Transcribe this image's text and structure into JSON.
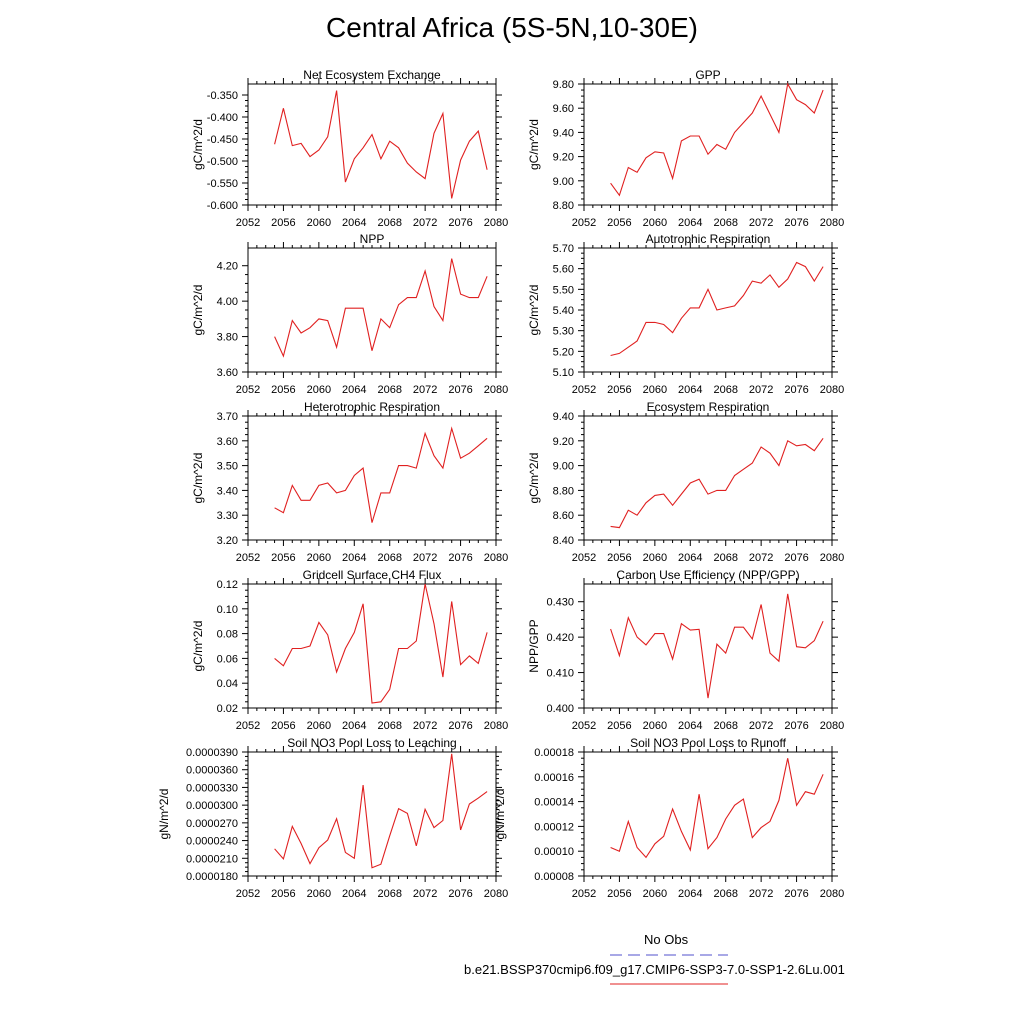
{
  "page": {
    "title": "Central Africa (5S-5N,10-30E)"
  },
  "legend": {
    "entries": [
      {
        "label": "No Obs",
        "color": "#5050cc",
        "dash": true
      },
      {
        "label": "b.e21.BSSP370cmip6.f09_g17.CMIP6-SSP3-7.0-SSP1-2.6Lu.001",
        "color": "#e02020",
        "dash": false
      }
    ]
  },
  "colors": {
    "series": "#e02020"
  },
  "chart_data": [
    {
      "type": "line",
      "title": "Net Ecosystem Exchange",
      "ylabel": "gC/m^2/d",
      "xlim": [
        2052,
        2080
      ],
      "ylim": [
        -0.6,
        -0.325
      ],
      "x_ticks": [
        2052,
        2056,
        2060,
        2064,
        2068,
        2072,
        2076,
        2080
      ],
      "y_ticks": [
        -0.6,
        -0.55,
        -0.5,
        -0.45,
        -0.4,
        -0.35
      ],
      "y_tick_labels": [
        "-0.600",
        "-0.550",
        "-0.500",
        "-0.450",
        "-0.400",
        "-0.350"
      ],
      "x": [
        2055,
        2056,
        2057,
        2058,
        2059,
        2060,
        2061,
        2062,
        2063,
        2064,
        2065,
        2066,
        2067,
        2068,
        2069,
        2070,
        2071,
        2072,
        2073,
        2074,
        2075,
        2076,
        2077,
        2078,
        2079
      ],
      "series": [
        {
          "values": [
            -0.462,
            -0.38,
            -0.465,
            -0.46,
            -0.49,
            -0.475,
            -0.445,
            -0.34,
            -0.548,
            -0.495,
            -0.47,
            -0.44,
            -0.495,
            -0.455,
            -0.47,
            -0.505,
            -0.525,
            -0.54,
            -0.437,
            -0.392,
            -0.585,
            -0.498,
            -0.455,
            -0.432,
            -0.52
          ]
        }
      ]
    },
    {
      "type": "line",
      "title": "GPP",
      "ylabel": "gC/m^2/d",
      "xlim": [
        2052,
        2080
      ],
      "ylim": [
        8.8,
        9.8
      ],
      "x_ticks": [
        2052,
        2056,
        2060,
        2064,
        2068,
        2072,
        2076,
        2080
      ],
      "y_ticks": [
        8.8,
        9.0,
        9.2,
        9.4,
        9.6,
        9.8
      ],
      "y_tick_labels": [
        "8.80",
        "9.00",
        "9.20",
        "9.40",
        "9.60",
        "9.80"
      ],
      "x": [
        2055,
        2056,
        2057,
        2058,
        2059,
        2060,
        2061,
        2062,
        2063,
        2064,
        2065,
        2066,
        2067,
        2068,
        2069,
        2070,
        2071,
        2072,
        2073,
        2074,
        2075,
        2076,
        2077,
        2078,
        2079
      ],
      "series": [
        {
          "values": [
            8.98,
            8.88,
            9.11,
            9.07,
            9.19,
            9.24,
            9.23,
            9.02,
            9.33,
            9.37,
            9.37,
            9.22,
            9.3,
            9.26,
            9.4,
            9.48,
            9.56,
            9.7,
            9.55,
            9.4,
            9.8,
            9.67,
            9.63,
            9.56,
            9.75
          ]
        }
      ]
    },
    {
      "type": "line",
      "title": "NPP",
      "ylabel": "gC/m^2/d",
      "xlim": [
        2052,
        2080
      ],
      "ylim": [
        3.6,
        4.3
      ],
      "x_ticks": [
        2052,
        2056,
        2060,
        2064,
        2068,
        2072,
        2076,
        2080
      ],
      "y_ticks": [
        3.6,
        3.8,
        4.0,
        4.2
      ],
      "y_tick_labels": [
        "3.60",
        "3.80",
        "4.00",
        "4.20"
      ],
      "x": [
        2055,
        2056,
        2057,
        2058,
        2059,
        2060,
        2061,
        2062,
        2063,
        2064,
        2065,
        2066,
        2067,
        2068,
        2069,
        2070,
        2071,
        2072,
        2073,
        2074,
        2075,
        2076,
        2077,
        2078,
        2079
      ],
      "series": [
        {
          "values": [
            3.8,
            3.69,
            3.89,
            3.82,
            3.85,
            3.9,
            3.89,
            3.74,
            3.96,
            3.96,
            3.96,
            3.72,
            3.9,
            3.85,
            3.98,
            4.02,
            4.02,
            4.17,
            3.97,
            3.89,
            4.24,
            4.04,
            4.02,
            4.02,
            4.14
          ]
        }
      ]
    },
    {
      "type": "line",
      "title": "Autotrophic Respiration",
      "ylabel": "gC/m^2/d",
      "xlim": [
        2052,
        2080
      ],
      "ylim": [
        5.1,
        5.7
      ],
      "x_ticks": [
        2052,
        2056,
        2060,
        2064,
        2068,
        2072,
        2076,
        2080
      ],
      "y_ticks": [
        5.1,
        5.2,
        5.3,
        5.4,
        5.5,
        5.6,
        5.7
      ],
      "y_tick_labels": [
        "5.10",
        "5.20",
        "5.30",
        "5.40",
        "5.50",
        "5.60",
        "5.70"
      ],
      "x": [
        2055,
        2056,
        2057,
        2058,
        2059,
        2060,
        2061,
        2062,
        2063,
        2064,
        2065,
        2066,
        2067,
        2068,
        2069,
        2070,
        2071,
        2072,
        2073,
        2074,
        2075,
        2076,
        2077,
        2078,
        2079
      ],
      "series": [
        {
          "values": [
            5.18,
            5.19,
            5.22,
            5.25,
            5.34,
            5.34,
            5.33,
            5.29,
            5.36,
            5.41,
            5.41,
            5.5,
            5.4,
            5.41,
            5.42,
            5.47,
            5.54,
            5.53,
            5.57,
            5.51,
            5.55,
            5.63,
            5.61,
            5.54,
            5.61
          ]
        }
      ]
    },
    {
      "type": "line",
      "title": "Heterotrophic Respiration",
      "ylabel": "gC/m^2/d",
      "xlim": [
        2052,
        2080
      ],
      "ylim": [
        3.2,
        3.7
      ],
      "x_ticks": [
        2052,
        2056,
        2060,
        2064,
        2068,
        2072,
        2076,
        2080
      ],
      "y_ticks": [
        3.2,
        3.3,
        3.4,
        3.5,
        3.6,
        3.7
      ],
      "y_tick_labels": [
        "3.20",
        "3.30",
        "3.40",
        "3.50",
        "3.60",
        "3.70"
      ],
      "x": [
        2055,
        2056,
        2057,
        2058,
        2059,
        2060,
        2061,
        2062,
        2063,
        2064,
        2065,
        2066,
        2067,
        2068,
        2069,
        2070,
        2071,
        2072,
        2073,
        2074,
        2075,
        2076,
        2077,
        2078,
        2079
      ],
      "series": [
        {
          "values": [
            3.33,
            3.31,
            3.42,
            3.36,
            3.36,
            3.42,
            3.43,
            3.39,
            3.4,
            3.46,
            3.49,
            3.27,
            3.39,
            3.39,
            3.5,
            3.5,
            3.49,
            3.63,
            3.54,
            3.49,
            3.65,
            3.53,
            3.55,
            3.58,
            3.61
          ]
        }
      ]
    },
    {
      "type": "line",
      "title": "Ecosystem Respiration",
      "ylabel": "gC/m^2/d",
      "xlim": [
        2052,
        2080
      ],
      "ylim": [
        8.4,
        9.4
      ],
      "x_ticks": [
        2052,
        2056,
        2060,
        2064,
        2068,
        2072,
        2076,
        2080
      ],
      "y_ticks": [
        8.4,
        8.6,
        8.8,
        9.0,
        9.2,
        9.4
      ],
      "y_tick_labels": [
        "8.40",
        "8.60",
        "8.80",
        "9.00",
        "9.20",
        "9.40"
      ],
      "x": [
        2055,
        2056,
        2057,
        2058,
        2059,
        2060,
        2061,
        2062,
        2063,
        2064,
        2065,
        2066,
        2067,
        2068,
        2069,
        2070,
        2071,
        2072,
        2073,
        2074,
        2075,
        2076,
        2077,
        2078,
        2079
      ],
      "series": [
        {
          "values": [
            8.51,
            8.5,
            8.64,
            8.6,
            8.7,
            8.76,
            8.77,
            8.68,
            8.77,
            8.86,
            8.89,
            8.77,
            8.8,
            8.8,
            8.92,
            8.97,
            9.02,
            9.15,
            9.1,
            9.0,
            9.2,
            9.16,
            9.17,
            9.12,
            9.22
          ]
        }
      ]
    },
    {
      "type": "line",
      "title": "Gridcell Surface CH4 Flux",
      "ylabel": "gC/m^2/d",
      "xlim": [
        2052,
        2080
      ],
      "ylim": [
        0.02,
        0.12
      ],
      "x_ticks": [
        2052,
        2056,
        2060,
        2064,
        2068,
        2072,
        2076,
        2080
      ],
      "y_ticks": [
        0.02,
        0.04,
        0.06,
        0.08,
        0.1,
        0.12
      ],
      "y_tick_labels": [
        "0.02",
        "0.04",
        "0.06",
        "0.08",
        "0.10",
        "0.12"
      ],
      "x": [
        2055,
        2056,
        2057,
        2058,
        2059,
        2060,
        2061,
        2062,
        2063,
        2064,
        2065,
        2066,
        2067,
        2068,
        2069,
        2070,
        2071,
        2072,
        2073,
        2074,
        2075,
        2076,
        2077,
        2078,
        2079
      ],
      "series": [
        {
          "values": [
            0.06,
            0.054,
            0.068,
            0.068,
            0.07,
            0.089,
            0.079,
            0.049,
            0.068,
            0.081,
            0.104,
            0.024,
            0.025,
            0.035,
            0.068,
            0.068,
            0.074,
            0.12,
            0.088,
            0.045,
            0.106,
            0.055,
            0.062,
            0.056,
            0.081
          ]
        }
      ]
    },
    {
      "type": "line",
      "title": "Carbon Use Efficiency (NPP/GPP)",
      "ylabel": "NPP/GPP",
      "xlim": [
        2052,
        2080
      ],
      "ylim": [
        0.4,
        0.435
      ],
      "x_ticks": [
        2052,
        2056,
        2060,
        2064,
        2068,
        2072,
        2076,
        2080
      ],
      "y_ticks": [
        0.4,
        0.41,
        0.42,
        0.43
      ],
      "y_tick_labels": [
        "0.400",
        "0.410",
        "0.420",
        "0.430"
      ],
      "x": [
        2055,
        2056,
        2057,
        2058,
        2059,
        2060,
        2061,
        2062,
        2063,
        2064,
        2065,
        2066,
        2067,
        2068,
        2069,
        2070,
        2071,
        2072,
        2073,
        2074,
        2075,
        2076,
        2077,
        2078,
        2079
      ],
      "series": [
        {
          "values": [
            0.4223,
            0.4148,
            0.4255,
            0.42,
            0.4178,
            0.421,
            0.421,
            0.4138,
            0.4238,
            0.422,
            0.4222,
            0.4028,
            0.418,
            0.4155,
            0.4228,
            0.4228,
            0.4195,
            0.4292,
            0.4155,
            0.4132,
            0.4322,
            0.4173,
            0.417,
            0.419,
            0.4245
          ]
        }
      ]
    },
    {
      "type": "line",
      "title": "Soil NO3 Pool Loss to Leaching",
      "ylabel": "gN/m^2/d",
      "xlim": [
        2052,
        2080
      ],
      "ylim": [
        1.8e-05,
        3.9e-05
      ],
      "x_ticks": [
        2052,
        2056,
        2060,
        2064,
        2068,
        2072,
        2076,
        2080
      ],
      "y_ticks": [
        1.8e-05,
        2.1e-05,
        2.4e-05,
        2.7e-05,
        3e-05,
        3.3e-05,
        3.6e-05,
        3.9e-05
      ],
      "y_tick_labels": [
        "0.0000180",
        "0.0000210",
        "0.0000240",
        "0.0000270",
        "0.0000300",
        "0.0000330",
        "0.0000360",
        "0.0000390"
      ],
      "x": [
        2055,
        2056,
        2057,
        2058,
        2059,
        2060,
        2061,
        2062,
        2063,
        2064,
        2065,
        2066,
        2067,
        2068,
        2069,
        2070,
        2071,
        2072,
        2073,
        2074,
        2075,
        2076,
        2077,
        2078,
        2079
      ],
      "series": [
        {
          "values": [
            2.26e-05,
            2.09e-05,
            2.64e-05,
            2.35e-05,
            2.01e-05,
            2.28e-05,
            2.41e-05,
            2.77e-05,
            2.2e-05,
            2.1e-05,
            3.34e-05,
            1.94e-05,
            2e-05,
            2.48e-05,
            2.94e-05,
            2.86e-05,
            2.31e-05,
            2.93e-05,
            2.62e-05,
            2.74e-05,
            3.87e-05,
            2.58e-05,
            3.02e-05,
            3.12e-05,
            3.23e-05
          ]
        }
      ]
    },
    {
      "type": "line",
      "title": "Soil NO3 Pool Loss to Runoff",
      "ylabel": "gN/m^2/d",
      "xlim": [
        2052,
        2080
      ],
      "ylim": [
        8e-05,
        0.00018
      ],
      "x_ticks": [
        2052,
        2056,
        2060,
        2064,
        2068,
        2072,
        2076,
        2080
      ],
      "y_ticks": [
        8e-05,
        0.0001,
        0.00012,
        0.00014,
        0.00016,
        0.00018
      ],
      "y_tick_labels": [
        "0.00008",
        "0.00010",
        "0.00012",
        "0.00014",
        "0.00016",
        "0.00018"
      ],
      "x": [
        2055,
        2056,
        2057,
        2058,
        2059,
        2060,
        2061,
        2062,
        2063,
        2064,
        2065,
        2066,
        2067,
        2068,
        2069,
        2070,
        2071,
        2072,
        2073,
        2074,
        2075,
        2076,
        2077,
        2078,
        2079
      ],
      "series": [
        {
          "values": [
            0.000103,
            0.0001,
            0.000124,
            0.000103,
            9.5e-05,
            0.000106,
            0.000112,
            0.000134,
            0.000116,
            0.000101,
            0.000146,
            0.000102,
            0.000111,
            0.000126,
            0.000137,
            0.000142,
            0.000111,
            0.000119,
            0.000124,
            0.000141,
            0.000175,
            0.000137,
            0.000148,
            0.000146,
            0.000162
          ]
        }
      ]
    }
  ]
}
